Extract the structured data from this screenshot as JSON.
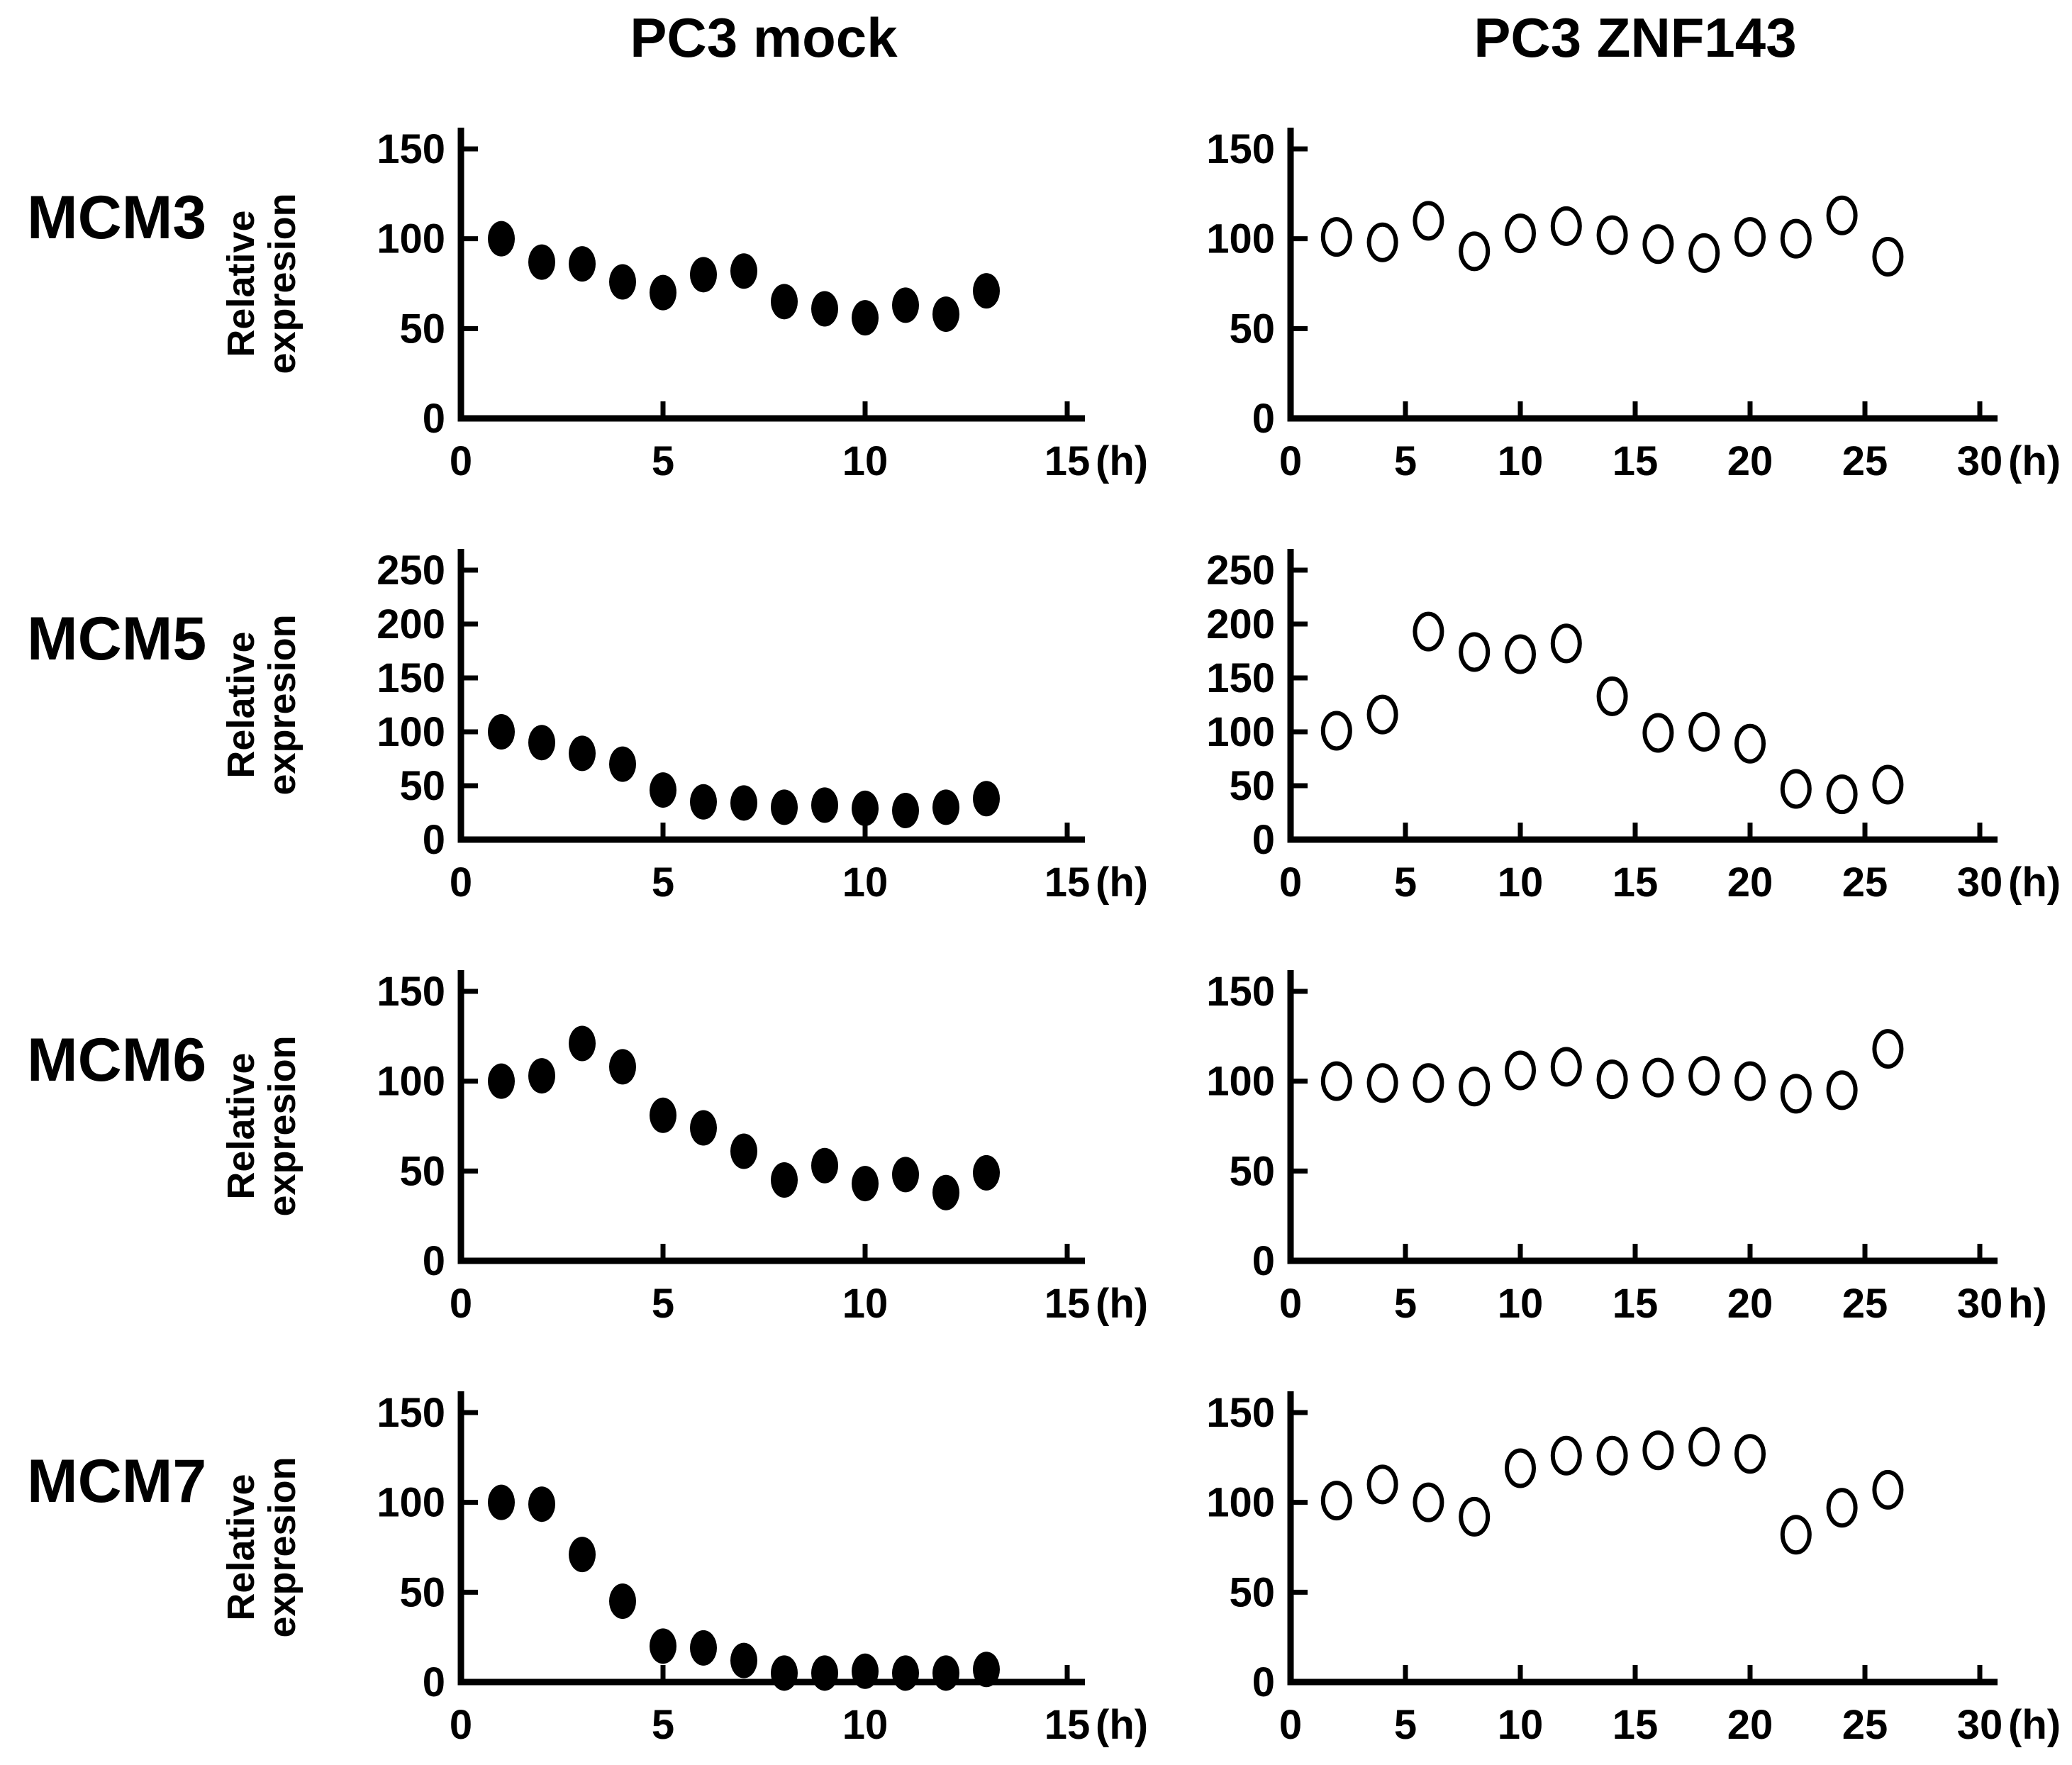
{
  "figure": {
    "background": "#ffffff",
    "foreground": "#000000",
    "column_titles": {
      "left": "PC3 mock",
      "right": "PC3 ZNF143"
    },
    "row_labels": [
      "MCM3",
      "MCM5",
      "MCM6",
      "MCM7"
    ],
    "y_axis_label": "Relative expresion"
  },
  "chart_data": [
    {
      "gene": "MCM3",
      "plots": [
        {
          "type": "scatter",
          "column": "PC3 mock",
          "marker": "filled-circle",
          "ylabel": "Relative expresion",
          "ylabel_lines": [
            "Relative",
            "expresion"
          ],
          "ylim": [
            0,
            150
          ],
          "yticks": [
            0,
            50,
            100,
            150
          ],
          "xlim": [
            0,
            15
          ],
          "xticks": [
            0,
            5,
            10,
            15
          ],
          "x_unit": "(h)",
          "x": [
            1,
            2,
            3,
            4,
            5,
            6,
            7,
            8,
            9,
            10,
            11,
            12,
            13
          ],
          "y": [
            100,
            87,
            86,
            76,
            70,
            80,
            82,
            65,
            61,
            56,
            63,
            58,
            71
          ]
        },
        {
          "type": "scatter",
          "column": "PC3 ZNF143",
          "marker": "open-circle",
          "ylabel": "",
          "ylabel_lines": [],
          "ylim": [
            0,
            150
          ],
          "yticks": [
            0,
            50,
            100,
            150
          ],
          "xlim": [
            0,
            30
          ],
          "xticks": [
            0,
            5,
            10,
            15,
            20,
            25,
            30
          ],
          "x_unit": "(h)",
          "x": [
            2,
            4,
            6,
            8,
            10,
            12,
            14,
            16,
            18,
            20,
            22,
            24,
            26
          ],
          "y": [
            101,
            98,
            110,
            93,
            103,
            107,
            102,
            97,
            92,
            101,
            100,
            113,
            90
          ]
        }
      ]
    },
    {
      "gene": "MCM5",
      "plots": [
        {
          "type": "scatter",
          "column": "PC3 mock",
          "marker": "filled-circle",
          "ylabel": "Relative expresion",
          "ylabel_lines": [
            "Relative",
            "expresion"
          ],
          "ylim": [
            0,
            250
          ],
          "yticks": [
            0,
            50,
            100,
            150,
            200,
            250
          ],
          "xlim": [
            0,
            15
          ],
          "xticks": [
            0,
            5,
            10,
            15
          ],
          "x_unit": "(h)",
          "x": [
            1,
            2,
            3,
            4,
            5,
            6,
            7,
            8,
            9,
            10,
            11,
            12,
            13
          ],
          "y": [
            100,
            90,
            80,
            70,
            46,
            35,
            34,
            30,
            32,
            29,
            27,
            30,
            38
          ]
        },
        {
          "type": "scatter",
          "column": "PC3 ZNF143",
          "marker": "open-circle",
          "ylabel": "",
          "ylabel_lines": [],
          "ylim": [
            0,
            250
          ],
          "yticks": [
            0,
            50,
            100,
            150,
            200,
            250
          ],
          "xlim": [
            0,
            30
          ],
          "xticks": [
            0,
            5,
            10,
            15,
            20,
            25,
            30
          ],
          "x_unit": "(h)",
          "x": [
            2,
            4,
            6,
            8,
            10,
            12,
            14,
            16,
            18,
            20,
            22,
            24,
            26
          ],
          "y": [
            101,
            116,
            193,
            174,
            172,
            182,
            133,
            99,
            100,
            89,
            47,
            42,
            51
          ]
        }
      ]
    },
    {
      "gene": "MCM6",
      "plots": [
        {
          "type": "scatter",
          "column": "PC3 mock",
          "marker": "filled-circle",
          "ylabel": "Relative expresion",
          "ylabel_lines": [
            "Relative",
            "expresion"
          ],
          "ylim": [
            0,
            150
          ],
          "yticks": [
            0,
            50,
            100,
            150
          ],
          "xlim": [
            0,
            15
          ],
          "xticks": [
            0,
            5,
            10,
            15
          ],
          "x_unit": "(h)",
          "x": [
            1,
            2,
            3,
            4,
            5,
            6,
            7,
            8,
            9,
            10,
            11,
            12,
            13
          ],
          "y": [
            100,
            103,
            121,
            108,
            81,
            74,
            61,
            45,
            53,
            43,
            48,
            38,
            49
          ]
        },
        {
          "type": "scatter",
          "column": "PC3 ZNF143",
          "marker": "open-circle",
          "ylabel": "",
          "ylabel_lines": [],
          "ylim": [
            0,
            150
          ],
          "yticks": [
            0,
            50,
            100,
            150
          ],
          "xlim": [
            0,
            30
          ],
          "xticks": [
            0,
            5,
            10,
            15,
            20,
            25,
            30
          ],
          "x_unit": "h)",
          "x": [
            2,
            4,
            6,
            8,
            10,
            12,
            14,
            16,
            18,
            20,
            22,
            24,
            26
          ],
          "y": [
            100,
            99,
            99,
            97,
            106,
            108,
            101,
            102,
            103,
            100,
            93,
            95,
            118
          ]
        }
      ]
    },
    {
      "gene": "MCM7",
      "plots": [
        {
          "type": "scatter",
          "column": "PC3 mock",
          "marker": "filled-circle",
          "ylabel": "Relative expresion",
          "ylabel_lines": [
            "Relative",
            "expresion"
          ],
          "ylim": [
            0,
            150
          ],
          "yticks": [
            0,
            50,
            100,
            150
          ],
          "xlim": [
            0,
            15
          ],
          "xticks": [
            0,
            5,
            10,
            15
          ],
          "x_unit": "(h)",
          "x": [
            1,
            2,
            3,
            4,
            5,
            6,
            7,
            8,
            9,
            10,
            11,
            12,
            13
          ],
          "y": [
            100,
            99,
            71,
            45,
            20,
            19,
            12,
            5,
            5,
            6,
            5,
            5,
            7
          ]
        },
        {
          "type": "scatter",
          "column": "PC3 ZNF143",
          "marker": "open-circle",
          "ylabel": "",
          "ylabel_lines": [],
          "ylim": [
            0,
            150
          ],
          "yticks": [
            0,
            50,
            100,
            150
          ],
          "xlim": [
            0,
            30
          ],
          "xticks": [
            0,
            5,
            10,
            15,
            20,
            25,
            30
          ],
          "x_unit": "(h)",
          "x": [
            2,
            4,
            6,
            8,
            10,
            12,
            14,
            16,
            18,
            20,
            22,
            24,
            26
          ],
          "y": [
            101,
            110,
            100,
            92,
            119,
            126,
            126,
            129,
            131,
            127,
            82,
            97,
            107
          ]
        }
      ]
    }
  ]
}
